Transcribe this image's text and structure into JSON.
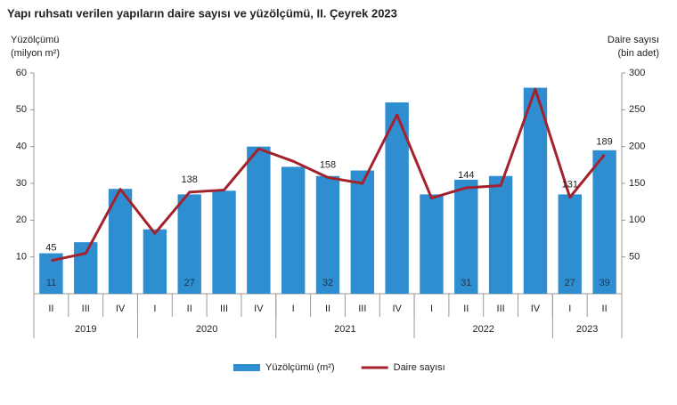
{
  "chart_data": {
    "type": "bar",
    "title": "Yapı ruhsatı verilen yapıların daire sayısı ve yüzölçümü, II. Çeyrek 2023",
    "y_label": [
      "Yüzölçümü",
      "(milyon m²)"
    ],
    "y2_label": [
      "Daire sayısı",
      "(bin adet)"
    ],
    "groups": [
      {
        "name": "2019",
        "categories": [
          "II",
          "III",
          "IV"
        ]
      },
      {
        "name": "2020",
        "categories": [
          "I",
          "II",
          "III",
          "IV"
        ]
      },
      {
        "name": "2021",
        "categories": [
          "I",
          "II",
          "III",
          "IV"
        ]
      },
      {
        "name": "2022",
        "categories": [
          "I",
          "II",
          "III",
          "IV"
        ]
      },
      {
        "name": "2023",
        "categories": [
          "I",
          "II"
        ]
      }
    ],
    "series": [
      {
        "name": "Yüzölçümü (m²)",
        "type": "bar",
        "color": "#2f8ed0",
        "values": [
          11,
          14,
          28.5,
          17.5,
          27,
          28,
          40,
          34.5,
          32,
          33.5,
          52,
          27,
          31,
          32,
          56,
          27,
          39
        ],
        "value_labels": [
          "11",
          null,
          null,
          null,
          "27",
          null,
          null,
          null,
          "32",
          null,
          null,
          null,
          "31",
          null,
          null,
          "27",
          "39"
        ]
      },
      {
        "name": "Daire sayısı",
        "type": "line",
        "axis": "y2",
        "color": "#a3222d",
        "values": [
          45,
          55,
          142,
          82,
          138,
          141,
          197,
          180,
          158,
          150,
          243,
          130,
          144,
          147,
          278,
          131,
          189
        ],
        "value_labels": [
          "45",
          null,
          null,
          null,
          "138",
          null,
          null,
          null,
          "158",
          null,
          null,
          null,
          "144",
          null,
          null,
          "131",
          "189"
        ]
      }
    ],
    "ylim": [
      0,
      60
    ],
    "yticks": [
      10,
      20,
      30,
      40,
      50,
      60
    ],
    "y2lim": [
      0,
      300
    ],
    "y2ticks": [
      50,
      100,
      150,
      200,
      250,
      300
    ],
    "grid": false,
    "legend": "bottom"
  }
}
